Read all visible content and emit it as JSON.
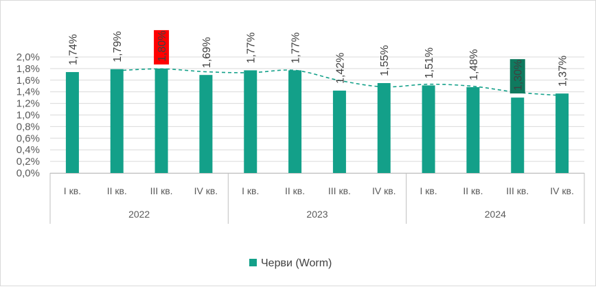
{
  "chart_data": {
    "type": "bar",
    "series": [
      {
        "name": "Черви (Worm)",
        "values": [
          1.74,
          1.79,
          1.8,
          1.69,
          1.77,
          1.77,
          1.42,
          1.55,
          1.51,
          1.48,
          1.3,
          1.37
        ]
      }
    ],
    "categories": [
      "I кв.",
      "II кв.",
      "III кв.",
      "IV кв.",
      "I кв.",
      "II кв.",
      "III кв.",
      "IV кв.",
      "I кв.",
      "II кв.",
      "III кв.",
      "IV кв."
    ],
    "groups": [
      {
        "label": "2022",
        "count": 4
      },
      {
        "label": "2023",
        "count": 4
      },
      {
        "label": "2024",
        "count": 4
      }
    ],
    "data_labels": [
      "1,74%",
      "1,79%",
      "1,80%",
      "1,69%",
      "1,77%",
      "1,77%",
      "1,42%",
      "1,55%",
      "1,51%",
      "1,48%",
      "1,30%",
      "1,37%"
    ],
    "highlight": [
      {
        "index": 2,
        "color": "#ff0000"
      },
      {
        "index": 10,
        "color": "#0f7a5f"
      }
    ],
    "y_ticks": [
      "0,0%",
      "0,2%",
      "0,4%",
      "0,6%",
      "0,8%",
      "1,0%",
      "1,2%",
      "1,4%",
      "1,6%",
      "1,8%",
      "2,0%"
    ],
    "ylim": [
      0,
      2.0
    ],
    "trendline": {
      "style": "dashed",
      "color": "#13a089"
    },
    "legend_position": "bottom",
    "bar_color": "#13a089",
    "grid": true
  }
}
